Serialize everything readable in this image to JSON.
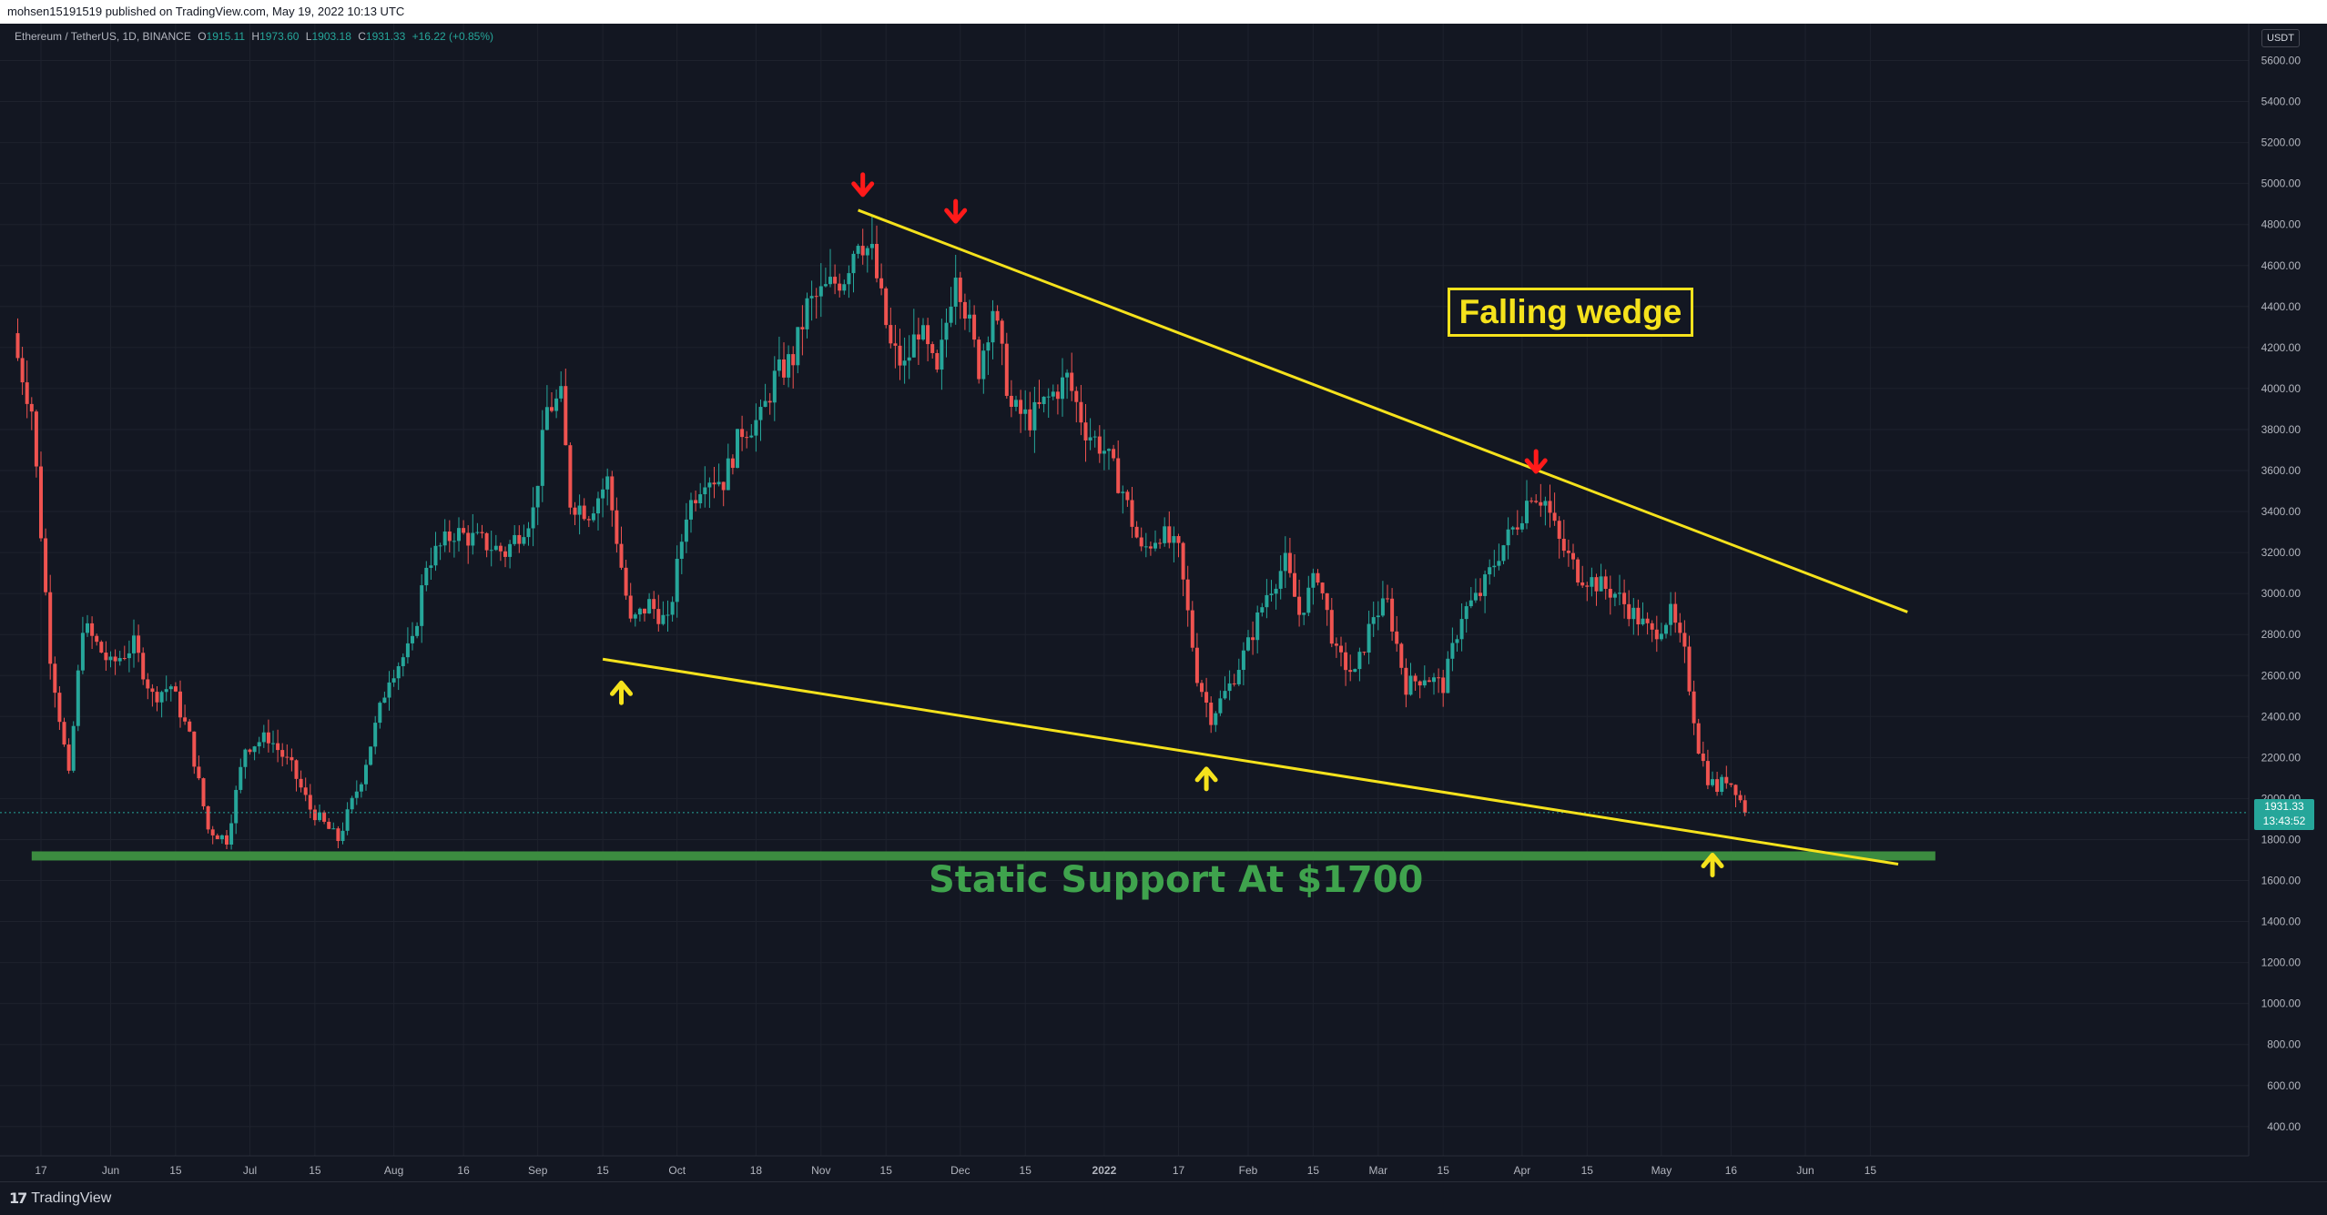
{
  "header": {
    "publisher_line": "mohsen15191519 published on TradingView.com, May 19, 2022 10:13 UTC"
  },
  "legend": {
    "symbol": "Ethereum / TetherUS, 1D, BINANCE",
    "open_label": "O",
    "open": "1915.11",
    "high_label": "H",
    "high": "1973.60",
    "low_label": "L",
    "low": "1903.18",
    "close_label": "C",
    "close": "1931.33",
    "change": "+16.22 (+0.85%)"
  },
  "price_axis": {
    "currency_badge": "USDT",
    "ticks": [
      "5600.00",
      "5400.00",
      "5200.00",
      "5000.00",
      "4800.00",
      "4600.00",
      "4400.00",
      "4200.00",
      "4000.00",
      "3800.00",
      "3600.00",
      "3400.00",
      "3200.00",
      "3000.00",
      "2800.00",
      "2600.00",
      "2400.00",
      "2200.00",
      "2000.00",
      "1800.00",
      "1600.00",
      "1400.00",
      "1200.00",
      "1000.00",
      "800.00",
      "600.00",
      "400.00"
    ],
    "current_price": "1931.33",
    "countdown": "13:43:52"
  },
  "time_axis": {
    "ticks": [
      "17",
      "Jun",
      "15",
      "Jul",
      "15",
      "Aug",
      "16",
      "Sep",
      "15",
      "Oct",
      "18",
      "Nov",
      "15",
      "Dec",
      "15",
      "2022",
      "17",
      "Feb",
      "15",
      "Mar",
      "15",
      "Apr",
      "15",
      "May",
      "16",
      "Jun",
      "15"
    ]
  },
  "annotations": {
    "wedge_label": "Falling wedge",
    "support_label": "Static Support At $1700"
  },
  "footer": {
    "brand": "TradingView"
  },
  "colors": {
    "background": "#131722",
    "bull": "#26a69a",
    "bear": "#ef5350",
    "trendline": "#f5e21c",
    "support": "#3c8c40",
    "arrow_down": "#ff1a1a",
    "arrow_up": "#f5e21c"
  },
  "chart_data": {
    "type": "candlestick",
    "symbol": "ETH/USDT",
    "interval": "1D",
    "ylim": [
      400,
      5700
    ],
    "price_ticks": [
      5600,
      5400,
      5200,
      5000,
      4800,
      4600,
      4400,
      4200,
      4000,
      3800,
      3600,
      3400,
      3200,
      3000,
      2800,
      2600,
      2400,
      2200,
      2000,
      1800,
      1600,
      1400,
      1200,
      1000,
      800,
      600,
      400
    ],
    "x_range": [
      "2021-05-12",
      "2022-06-22"
    ],
    "date_ticks": [
      {
        "label": "17",
        "date": "2021-05-17"
      },
      {
        "label": "Jun",
        "date": "2021-06-01"
      },
      {
        "label": "15",
        "date": "2021-06-15"
      },
      {
        "label": "Jul",
        "date": "2021-07-01"
      },
      {
        "label": "15",
        "date": "2021-07-15"
      },
      {
        "label": "Aug",
        "date": "2021-08-01"
      },
      {
        "label": "16",
        "date": "2021-08-16"
      },
      {
        "label": "Sep",
        "date": "2021-09-01"
      },
      {
        "label": "15",
        "date": "2021-09-15"
      },
      {
        "label": "Oct",
        "date": "2021-10-01"
      },
      {
        "label": "18",
        "date": "2021-10-18"
      },
      {
        "label": "Nov",
        "date": "2021-11-01"
      },
      {
        "label": "15",
        "date": "2021-11-15"
      },
      {
        "label": "Dec",
        "date": "2021-12-01"
      },
      {
        "label": "15",
        "date": "2021-12-15"
      },
      {
        "label": "2022",
        "date": "2022-01-01"
      },
      {
        "label": "17",
        "date": "2022-01-17"
      },
      {
        "label": "Feb",
        "date": "2022-02-01"
      },
      {
        "label": "15",
        "date": "2022-02-15"
      },
      {
        "label": "Mar",
        "date": "2022-03-01"
      },
      {
        "label": "15",
        "date": "2022-03-15"
      },
      {
        "label": "Apr",
        "date": "2022-04-01"
      },
      {
        "label": "15",
        "date": "2022-04-15"
      },
      {
        "label": "May",
        "date": "2022-05-01"
      },
      {
        "label": "16",
        "date": "2022-05-16"
      },
      {
        "label": "Jun",
        "date": "2022-06-01"
      },
      {
        "label": "15",
        "date": "2022-06-15"
      }
    ],
    "close_path": [
      [
        "2021-05-12",
        4150
      ],
      [
        "2021-05-15",
        3900
      ],
      [
        "2021-05-19",
        2700
      ],
      [
        "2021-05-23",
        2100
      ],
      [
        "2021-05-26",
        2850
      ],
      [
        "2021-06-01",
        2650
      ],
      [
        "2021-06-06",
        2750
      ],
      [
        "2021-06-10",
        2500
      ],
      [
        "2021-06-14",
        2550
      ],
      [
        "2021-06-18",
        2300
      ],
      [
        "2021-06-22",
        1850
      ],
      [
        "2021-06-26",
        1800
      ],
      [
        "2021-06-30",
        2250
      ],
      [
        "2021-07-05",
        2300
      ],
      [
        "2021-07-10",
        2150
      ],
      [
        "2021-07-14",
        1950
      ],
      [
        "2021-07-20",
        1800
      ],
      [
        "2021-07-25",
        2100
      ],
      [
        "2021-07-31",
        2600
      ],
      [
        "2021-08-05",
        2750
      ],
      [
        "2021-08-08",
        3150
      ],
      [
        "2021-08-14",
        3300
      ],
      [
        "2021-08-20",
        3250
      ],
      [
        "2021-08-25",
        3200
      ],
      [
        "2021-08-31",
        3400
      ],
      [
        "2021-09-03",
        3900
      ],
      [
        "2021-09-06",
        3950
      ],
      [
        "2021-09-08",
        3450
      ],
      [
        "2021-09-12",
        3400
      ],
      [
        "2021-09-16",
        3550
      ],
      [
        "2021-09-21",
        2850
      ],
      [
        "2021-09-25",
        2950
      ],
      [
        "2021-09-29",
        2850
      ],
      [
        "2021-10-03",
        3400
      ],
      [
        "2021-10-07",
        3580
      ],
      [
        "2021-10-11",
        3550
      ],
      [
        "2021-10-15",
        3800
      ],
      [
        "2021-10-19",
        3850
      ],
      [
        "2021-10-22",
        4050
      ],
      [
        "2021-10-26",
        4150
      ],
      [
        "2021-10-29",
        4400
      ],
      [
        "2021-11-03",
        4500
      ],
      [
        "2021-11-06",
        4550
      ],
      [
        "2021-11-09",
        4750
      ],
      [
        "2021-11-12",
        4650
      ],
      [
        "2021-11-16",
        4200
      ],
      [
        "2021-11-19",
        4100
      ],
      [
        "2021-11-22",
        4300
      ],
      [
        "2021-11-26",
        4050
      ],
      [
        "2021-11-30",
        4600
      ],
      [
        "2021-12-03",
        4300
      ],
      [
        "2021-12-05",
        4100
      ],
      [
        "2021-12-08",
        4400
      ],
      [
        "2021-12-12",
        3900
      ],
      [
        "2021-12-16",
        3850
      ],
      [
        "2021-12-20",
        3950
      ],
      [
        "2021-12-24",
        4050
      ],
      [
        "2021-12-28",
        3800
      ],
      [
        "2022-01-01",
        3700
      ],
      [
        "2022-01-05",
        3500
      ],
      [
        "2022-01-09",
        3200
      ],
      [
        "2022-01-13",
        3300
      ],
      [
        "2022-01-17",
        3200
      ],
      [
        "2022-01-21",
        2600
      ],
      [
        "2022-01-24",
        2400
      ],
      [
        "2022-01-28",
        2550
      ],
      [
        "2022-02-01",
        2750
      ],
      [
        "2022-02-05",
        3000
      ],
      [
        "2022-02-09",
        3150
      ],
      [
        "2022-02-12",
        2900
      ],
      [
        "2022-02-16",
        3100
      ],
      [
        "2022-02-20",
        2700
      ],
      [
        "2022-02-24",
        2600
      ],
      [
        "2022-02-28",
        2900
      ],
      [
        "2022-03-03",
        2950
      ],
      [
        "2022-03-07",
        2550
      ],
      [
        "2022-03-11",
        2600
      ],
      [
        "2022-03-15",
        2550
      ],
      [
        "2022-03-19",
        2900
      ],
      [
        "2022-03-23",
        3000
      ],
      [
        "2022-03-27",
        3200
      ],
      [
        "2022-03-31",
        3350
      ],
      [
        "2022-04-03",
        3500
      ],
      [
        "2022-04-06",
        3450
      ],
      [
        "2022-04-09",
        3250
      ],
      [
        "2022-04-13",
        3100
      ],
      [
        "2022-04-17",
        3050
      ],
      [
        "2022-04-21",
        3000
      ],
      [
        "2022-04-25",
        2900
      ],
      [
        "2022-04-29",
        2800
      ],
      [
        "2022-05-03",
        2900
      ],
      [
        "2022-05-06",
        2700
      ],
      [
        "2022-05-09",
        2250
      ],
      [
        "2022-05-11",
        2100
      ],
      [
        "2022-05-13",
        2050
      ],
      [
        "2022-05-15",
        2100
      ],
      [
        "2022-05-17",
        2050
      ],
      [
        "2022-05-19",
        1931
      ]
    ],
    "lines": [
      {
        "label": "upper trendline",
        "from": [
          "2021-11-09",
          4870
        ],
        "to": [
          "2022-06-23",
          2910
        ]
      },
      {
        "label": "lower trendline",
        "from": [
          "2021-09-15",
          2680
        ],
        "to": [
          "2022-06-21",
          1680
        ]
      }
    ],
    "support_zone": {
      "from": "2021-05-15",
      "to": "2022-06-29",
      "price": 1720
    },
    "markers": [
      {
        "type": "down",
        "date": "2021-11-10",
        "price": 4990
      },
      {
        "type": "down",
        "date": "2021-11-30",
        "price": 4860
      },
      {
        "type": "down",
        "date": "2022-04-04",
        "price": 3640
      },
      {
        "type": "up",
        "date": "2021-09-19",
        "price": 2520
      },
      {
        "type": "up",
        "date": "2022-01-23",
        "price": 2100
      },
      {
        "type": "up",
        "date": "2022-05-12",
        "price": 1680
      }
    ],
    "current_price": 1931.33
  }
}
